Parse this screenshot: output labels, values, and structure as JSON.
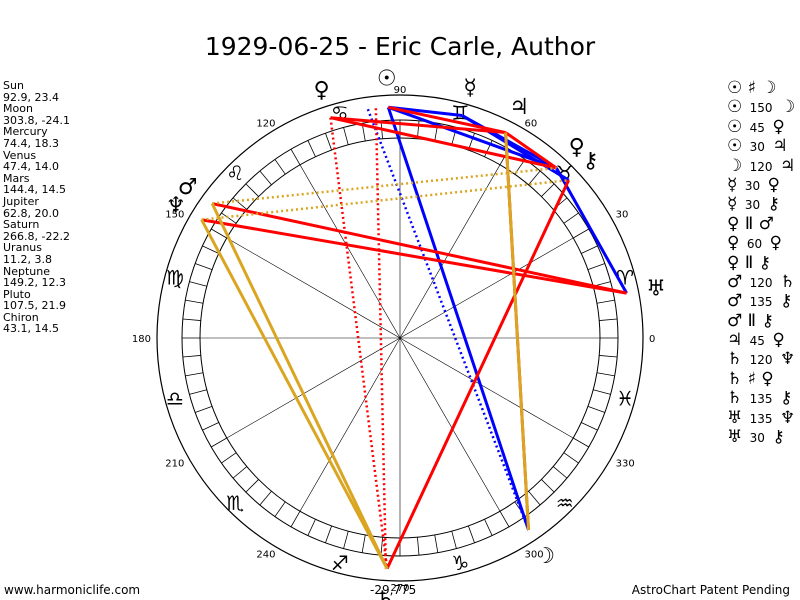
{
  "title": "1929-06-25 - Eric Carle, Author",
  "planets": [
    {
      "name": "Sun",
      "pos": "92.9, 23.4",
      "lon": 92.9,
      "glyph": "☉",
      "color": "#000000"
    },
    {
      "name": "Moon",
      "pos": "303.8, -24.1",
      "lon": 303.8,
      "glyph": "☽",
      "color": "#000000"
    },
    {
      "name": "Mercury",
      "pos": "74.4, 18.3",
      "lon": 74.4,
      "glyph": "☿",
      "color": "#000000"
    },
    {
      "name": "Venus",
      "pos": "47.4, 14.0",
      "lon": 47.4,
      "glyph": "♀",
      "color": "#000000"
    },
    {
      "name": "Mars",
      "pos": "144.4, 14.5",
      "lon": 144.4,
      "glyph": "♂",
      "color": "#000000"
    },
    {
      "name": "Jupiter",
      "pos": "62.8, 20.0",
      "lon": 62.8,
      "glyph": "♃",
      "color": "#000000"
    },
    {
      "name": "Saturn",
      "pos": "266.8, -22.2",
      "lon": 266.8,
      "glyph": "♄",
      "color": "#000000"
    },
    {
      "name": "Uranus",
      "pos": "11.2, 3.8",
      "lon": 11.2,
      "glyph": "♅",
      "color": "#000000"
    },
    {
      "name": "Neptune",
      "pos": "149.2, 12.3",
      "lon": 149.2,
      "glyph": "♆",
      "color": "#000000"
    },
    {
      "name": "Pluto",
      "pos": "107.5, 21.9",
      "lon": 107.5,
      "glyph": "♀",
      "color": "#000000"
    },
    {
      "name": "Chiron",
      "pos": "43.1, 14.5",
      "lon": 43.1,
      "glyph": "⚷",
      "color": "#000000"
    }
  ],
  "aspects": [
    {
      "p1": "☉",
      "type": "♯",
      "num": "",
      "p2": "☽"
    },
    {
      "p1": "☉",
      "type": "",
      "num": "150",
      "p2": "☽"
    },
    {
      "p1": "☉",
      "type": "",
      "num": "45",
      "p2": "♀"
    },
    {
      "p1": "☉",
      "type": "",
      "num": "30",
      "p2": "♃"
    },
    {
      "p1": "☽",
      "type": "",
      "num": "120",
      "p2": "♃"
    },
    {
      "p1": "☿",
      "type": "",
      "num": "30",
      "p2": "♀"
    },
    {
      "p1": "☿",
      "type": "",
      "num": "30",
      "p2": "⚷"
    },
    {
      "p1": "♀",
      "type": "Ⅱ",
      "num": "",
      "p2": "♂"
    },
    {
      "p1": "♀",
      "type": "",
      "num": "60",
      "p2": "♀"
    },
    {
      "p1": "♀",
      "type": "Ⅱ",
      "num": "",
      "p2": "⚷"
    },
    {
      "p1": "♂",
      "type": "",
      "num": "120",
      "p2": "♄"
    },
    {
      "p1": "♂",
      "type": "",
      "num": "135",
      "p2": "⚷"
    },
    {
      "p1": "♂",
      "type": "Ⅱ",
      "num": "",
      "p2": "⚷"
    },
    {
      "p1": "♃",
      "type": "",
      "num": "45",
      "p2": "♀"
    },
    {
      "p1": "♄",
      "type": "",
      "num": "120",
      "p2": "♆"
    },
    {
      "p1": "♄",
      "type": "♯",
      "num": "",
      "p2": "♀"
    },
    {
      "p1": "♄",
      "type": "",
      "num": "135",
      "p2": "⚷"
    },
    {
      "p1": "♅",
      "type": "",
      "num": "135",
      "p2": "♆"
    },
    {
      "p1": "♅",
      "type": "",
      "num": "30",
      "p2": "⚷"
    }
  ],
  "degree_labels": [
    "0",
    "30",
    "60",
    "90",
    "120",
    "150",
    "180",
    "210",
    "240",
    "270",
    "300",
    "330"
  ],
  "signs": [
    "♈",
    "♉",
    "♊",
    "♋",
    "♌",
    "♍",
    "♎",
    "♏",
    "♐",
    "♑",
    "♒",
    "♓"
  ],
  "aspect_lines": [
    {
      "a": 92.9,
      "b": 303.8,
      "color": "#0000ff",
      "style": "solid"
    },
    {
      "a": 92.9,
      "b": 74.4,
      "color": "#0000ff",
      "style": "solid"
    },
    {
      "a": 92.9,
      "b": 47.4,
      "color": "#0000ff",
      "style": "solid"
    },
    {
      "a": 74.4,
      "b": 47.4,
      "color": "#0000ff",
      "style": "solid"
    },
    {
      "a": 74.4,
      "b": 43.1,
      "color": "#0000ff",
      "style": "solid"
    },
    {
      "a": 47.4,
      "b": 11.2,
      "color": "#0000ff",
      "style": "solid"
    },
    {
      "a": 98.0,
      "b": 303.8,
      "color": "#0000ff",
      "style": "dotted"
    },
    {
      "a": 107.5,
      "b": 62.8,
      "color": "#ff0000",
      "style": "solid"
    },
    {
      "a": 107.5,
      "b": 47.4,
      "color": "#ff0000",
      "style": "solid"
    },
    {
      "a": 92.9,
      "b": 62.8,
      "color": "#ff0000",
      "style": "solid"
    },
    {
      "a": 62.8,
      "b": 47.4,
      "color": "#ff0000",
      "style": "solid"
    },
    {
      "a": 107.5,
      "b": 266.8,
      "color": "#ff0000",
      "style": "dotted"
    },
    {
      "a": 96.0,
      "b": 266.5,
      "color": "#ff0000",
      "style": "dotted"
    },
    {
      "a": 144.4,
      "b": 11.2,
      "color": "#ff0000",
      "style": "solid"
    },
    {
      "a": 149.2,
      "b": 11.2,
      "color": "#ff0000",
      "style": "solid"
    },
    {
      "a": 43.1,
      "b": 266.8,
      "color": "#ff0000",
      "style": "solid"
    },
    {
      "a": 62.8,
      "b": 303.8,
      "color": "#ff0000",
      "style": "solid"
    },
    {
      "a": 62.8,
      "b": 303.8,
      "color": "#daa520",
      "style": "solid"
    },
    {
      "a": 144.4,
      "b": 266.8,
      "color": "#daa520",
      "style": "solid"
    },
    {
      "a": 149.2,
      "b": 266.8,
      "color": "#daa520",
      "style": "solid"
    },
    {
      "a": 144.4,
      "b": 47.4,
      "color": "#daa520",
      "style": "dotted"
    },
    {
      "a": 149.2,
      "b": 43.1,
      "color": "#daa520",
      "style": "dotted"
    }
  ],
  "footer": {
    "left": "www.harmoniclife.com",
    "center": "-29,775",
    "right": "AstroChart Patent Pending"
  }
}
